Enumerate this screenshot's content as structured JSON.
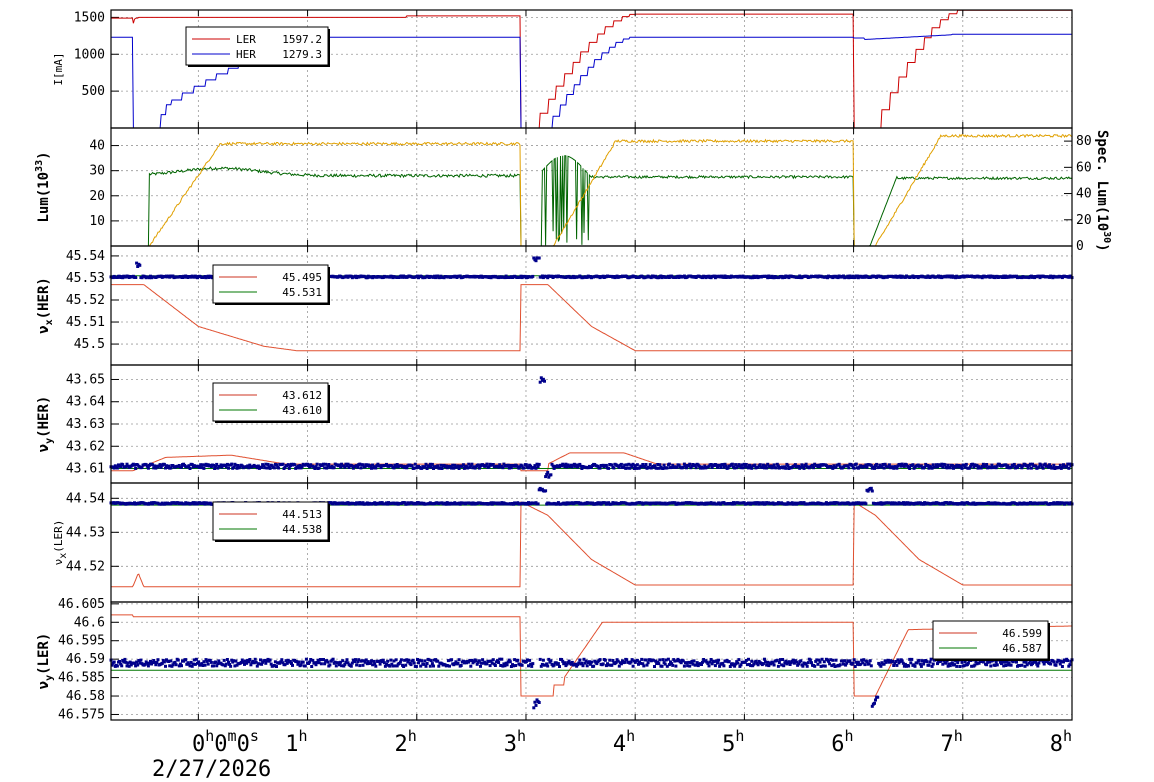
{
  "chart_data": {
    "type": "line",
    "x_ticks": [
      {
        "t": 0,
        "label": "0",
        "sup": "h",
        "extra": "0m0s"
      },
      {
        "t": 1,
        "label": "1",
        "sup": "h"
      },
      {
        "t": 2,
        "label": "2",
        "sup": "h"
      },
      {
        "t": 3,
        "label": "3",
        "sup": "h"
      },
      {
        "t": 4,
        "label": "4",
        "sup": "h"
      },
      {
        "t": 5,
        "label": "5",
        "sup": "h"
      },
      {
        "t": 6,
        "label": "6",
        "sup": "h"
      },
      {
        "t": 7,
        "label": "7",
        "sup": "h"
      },
      {
        "t": 8,
        "label": "8",
        "sup": "h"
      }
    ],
    "x_range": [
      -0.8,
      8.0
    ],
    "date": "2/27/2026",
    "x_tick_extra": "0m0s",
    "panels": [
      {
        "id": "current",
        "ylabel": "I[mA]",
        "ylim": [
          0,
          1600
        ],
        "yticks": [
          500,
          1000,
          1500
        ],
        "legend": [
          {
            "name": "LER",
            "value": "1597.2",
            "color": "#cc0000"
          },
          {
            "name": "HER",
            "value": "1279.3",
            "color": "#0000cc"
          }
        ]
      },
      {
        "id": "luminosity",
        "ylabel": "Lum(10",
        "ylabel_sup": "33",
        "ylabel_tail": ")",
        "ylim": [
          0,
          47
        ],
        "yticks": [
          10,
          20,
          30,
          40
        ],
        "ylabel_right": "Spec. Lum(10",
        "ylabel_right_sup": "30",
        "ylabel_right_tail": ")",
        "ylim_right": [
          0,
          90
        ],
        "yticks_right": [
          0,
          20,
          40,
          60,
          80
        ],
        "series": [
          {
            "axis": "left",
            "color": "#006400"
          },
          {
            "axis": "right",
            "color": "#e0a000"
          }
        ]
      },
      {
        "id": "nux_her",
        "ylabel": "ν",
        "ylabel_sub": "x",
        "ylabel_tail": "(HER)",
        "ylim": [
          45.4905,
          45.5445
        ],
        "yticks": [
          {
            "v": 45.5,
            "label": "45.5"
          },
          {
            "v": 45.51,
            "label": "45.51"
          },
          {
            "v": 45.52,
            "label": "45.52"
          },
          {
            "v": 45.53,
            "label": "45.53"
          },
          {
            "v": 45.54,
            "label": "45.54"
          }
        ],
        "legend": [
          {
            "value": "45.495",
            "color": "#cc3322"
          },
          {
            "value": "45.531",
            "color": "#007700"
          }
        ]
      },
      {
        "id": "nuy_her",
        "ylabel": "ν",
        "ylabel_sub": "y",
        "ylabel_tail": "(HER)",
        "ylim": [
          43.6035,
          43.6565
        ],
        "yticks": [
          {
            "v": 43.61,
            "label": "43.61"
          },
          {
            "v": 43.62,
            "label": "43.62"
          },
          {
            "v": 43.63,
            "label": "43.63"
          },
          {
            "v": 43.64,
            "label": "43.64"
          },
          {
            "v": 43.65,
            "label": "43.65"
          }
        ],
        "legend": [
          {
            "value": "43.612",
            "color": "#cc3322"
          },
          {
            "value": "43.610",
            "color": "#007700"
          }
        ]
      },
      {
        "id": "nux_ler",
        "ylabel": "ν",
        "ylabel_sub": "x",
        "ylabel_tail": "(LER)",
        "ylim": [
          44.5095,
          44.5445
        ],
        "yticks": [
          {
            "v": 44.52,
            "label": "44.52"
          },
          {
            "v": 44.53,
            "label": "44.53"
          },
          {
            "v": 44.54,
            "label": "44.54"
          }
        ],
        "legend": [
          {
            "value": "44.513",
            "color": "#cc3322"
          },
          {
            "value": "44.538",
            "color": "#007700"
          }
        ]
      },
      {
        "id": "nuy_ler",
        "ylabel": "ν",
        "ylabel_sub": "y",
        "ylabel_tail": "(LER)",
        "ylim": [
          46.5735,
          46.6055
        ],
        "yticks": [
          {
            "v": 46.575,
            "label": "46.575"
          },
          {
            "v": 46.58,
            "label": "46.58"
          },
          {
            "v": 46.585,
            "label": "46.585"
          },
          {
            "v": 46.59,
            "label": "46.59"
          },
          {
            "v": 46.595,
            "label": "46.595"
          },
          {
            "v": 46.6,
            "label": "46.6"
          },
          {
            "v": 46.605,
            "label": "46.605"
          }
        ],
        "legend": [
          {
            "value": "46.599",
            "color": "#cc3322"
          },
          {
            "value": "46.587",
            "color": "#007700"
          }
        ]
      }
    ]
  }
}
